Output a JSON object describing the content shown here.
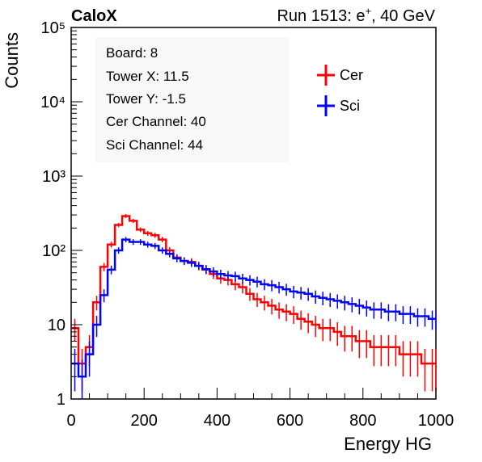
{
  "header": {
    "experiment": "CaloX",
    "run_prefix": "Run 1513: e",
    "run_superscript": "+",
    "run_suffix": ", 40 GeV"
  },
  "info_box": {
    "lines": [
      "Board: 8",
      "Tower X: 11.5",
      "Tower Y: -1.5",
      "Cer Channel: 40",
      "Sci Channel: 44"
    ]
  },
  "chart_data": {
    "type": "line",
    "style": "step histogram with error bars",
    "title": "",
    "xlabel": "Energy HG",
    "ylabel": "Counts",
    "xlim": [
      0,
      1000
    ],
    "ylim": [
      1,
      100000
    ],
    "y_scale": "log",
    "grid": false,
    "legend_position": "top-right",
    "x_ticks": [
      0,
      200,
      400,
      600,
      800,
      1000
    ],
    "x_tick_labels": [
      "0",
      "200",
      "400",
      "600",
      "800",
      "1000"
    ],
    "y_ticks": [
      1,
      10,
      100,
      1000,
      10000,
      100000
    ],
    "y_tick_labels": [
      "1",
      "10",
      "10²",
      "10³",
      "10⁴",
      "10⁵"
    ],
    "x": [
      0,
      20,
      40,
      60,
      80,
      100,
      120,
      140,
      160,
      180,
      200,
      220,
      240,
      260,
      280,
      300,
      320,
      340,
      360,
      380,
      400,
      420,
      440,
      460,
      480,
      500,
      520,
      540,
      560,
      580,
      600,
      620,
      640,
      660,
      680,
      700,
      720,
      740,
      760,
      780,
      800,
      820,
      840,
      860,
      880,
      900,
      920,
      940,
      960,
      980,
      1000
    ],
    "series": [
      {
        "name": "Cer",
        "color": "#ff0000",
        "values": [
          9,
          3,
          5,
          20,
          60,
          120,
          220,
          290,
          250,
          190,
          170,
          160,
          140,
          100,
          80,
          72,
          70,
          62,
          55,
          48,
          42,
          40,
          35,
          32,
          26,
          22,
          20,
          18,
          16,
          15,
          14,
          12,
          11,
          10,
          9,
          9,
          8,
          7,
          7,
          6,
          6,
          5,
          5,
          5,
          5,
          4,
          4,
          4,
          3,
          3,
          3
        ]
      },
      {
        "name": "Sci",
        "color": "#0000ff",
        "values": [
          3,
          2,
          4,
          10,
          25,
          55,
          100,
          140,
          130,
          130,
          120,
          115,
          100,
          90,
          78,
          72,
          68,
          62,
          56,
          52,
          48,
          46,
          45,
          42,
          40,
          38,
          35,
          34,
          32,
          30,
          28,
          27,
          26,
          24,
          23,
          22,
          21,
          20,
          19,
          18,
          17,
          16,
          16,
          15,
          15,
          14,
          14,
          13,
          13,
          12,
          12
        ]
      }
    ]
  }
}
